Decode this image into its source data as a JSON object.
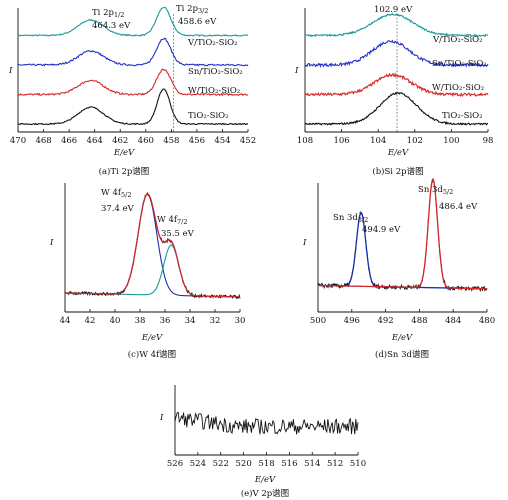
{
  "chart_data": [
    {
      "type": "line",
      "key": "ti",
      "caption": "(a)Ti 2p谱图",
      "xlabel": "E/eV",
      "ylabel": "I",
      "xlim": [
        470,
        452
      ],
      "xticks": [
        470,
        468,
        466,
        464,
        462,
        460,
        458,
        456,
        454,
        452
      ],
      "peaks": [
        {
          "label": "Ti 2p",
          "sub": "1/2",
          "value": "464.3 eV"
        },
        {
          "label": "Ti 2p",
          "sub": "3/2",
          "value": "458.6 eV"
        }
      ],
      "series": [
        {
          "name": "V/TiO₂-SiO₂",
          "color": "#1a9a9a",
          "offset": 3,
          "centers": [
            464.3,
            458.6
          ],
          "heights": [
            0.55,
            1.0
          ],
          "sigma": [
            1.0,
            0.55
          ],
          "noise": 0.02
        },
        {
          "name": "Sn/TiO₂-SiO₂",
          "color": "#2332c8",
          "offset": 2,
          "centers": [
            464.3,
            458.6
          ],
          "heights": [
            0.5,
            0.95
          ],
          "sigma": [
            1.0,
            0.55
          ],
          "noise": 0.03
        },
        {
          "name": "W/TiO₂-SiO₂",
          "color": "#d62828",
          "offset": 1,
          "centers": [
            464.3,
            458.6
          ],
          "heights": [
            0.5,
            0.9
          ],
          "sigma": [
            1.0,
            0.55
          ],
          "noise": 0.03
        },
        {
          "name": "TiO₂-SiO₂",
          "color": "#111111",
          "offset": 0,
          "centers": [
            464.3,
            458.6
          ],
          "heights": [
            0.6,
            1.25
          ],
          "sigma": [
            1.0,
            0.5
          ],
          "noise": 0.02
        }
      ]
    },
    {
      "type": "line",
      "key": "si",
      "caption": "(b)Si 2p谱图",
      "xlabel": "E/eV",
      "ylabel": "I",
      "xlim": [
        108,
        98
      ],
      "xticks": [
        108,
        106,
        104,
        102,
        100,
        98
      ],
      "peaks": [
        {
          "label": "",
          "sub": "",
          "value": "102.9 eV"
        }
      ],
      "series": [
        {
          "name": "V/TiO₂-SiO₂",
          "color": "#1a9a9a",
          "offset": 3,
          "centers": [
            103.2
          ],
          "heights": [
            0.75
          ],
          "sigma": [
            1.1
          ],
          "noise": 0.03
        },
        {
          "name": "Sn/TiO₂-SiO₂",
          "color": "#2332c8",
          "offset": 2,
          "centers": [
            103.3
          ],
          "heights": [
            0.85
          ],
          "sigma": [
            1.0
          ],
          "noise": 0.05
        },
        {
          "name": "W/TiO₂-SiO₂",
          "color": "#d62828",
          "offset": 1,
          "centers": [
            103.2
          ],
          "heights": [
            0.7
          ],
          "sigma": [
            1.0
          ],
          "noise": 0.05
        },
        {
          "name": "TiO₂-SiO₂",
          "color": "#111111",
          "offset": 0,
          "centers": [
            102.9
          ],
          "heights": [
            1.1
          ],
          "sigma": [
            1.0
          ],
          "noise": 0.03
        }
      ]
    },
    {
      "type": "line",
      "key": "w",
      "caption": "(c)W 4f谱图",
      "xlabel": "E/eV",
      "ylabel": "I",
      "xlim": [
        44,
        30
      ],
      "xticks": [
        44,
        42,
        40,
        38,
        36,
        34,
        32,
        30
      ],
      "peaks": [
        {
          "label": "W 4f",
          "sub": "5/2",
          "value": "37.4 eV"
        },
        {
          "label": "W 4f",
          "sub": "7/2",
          "value": "35.5 eV"
        }
      ],
      "series": [
        {
          "name": "",
          "color": "#111111",
          "role": "raw"
        },
        {
          "name": "",
          "color": "#d62828",
          "role": "fit"
        },
        {
          "name": "",
          "color": "#1a2fb0",
          "role": "peak",
          "center": 37.4,
          "height": 1.0,
          "sigma": 0.75
        },
        {
          "name": "",
          "color": "#1a9a9a",
          "role": "peak",
          "center": 35.5,
          "height": 0.5,
          "sigma": 0.6
        }
      ]
    },
    {
      "type": "line",
      "key": "sn",
      "caption": "(d)Sn 3d谱图",
      "xlabel": "E/eV",
      "ylabel": "I",
      "xlim": [
        500,
        480
      ],
      "xticks": [
        500,
        496,
        492,
        488,
        484,
        480
      ],
      "peaks": [
        {
          "label": "Sn 3d",
          "sub": "3/2",
          "value": "494.9 eV"
        },
        {
          "label": "Sn 3d",
          "sub": "5/2",
          "value": "486.4 eV"
        }
      ],
      "series": [
        {
          "name": "",
          "color": "#111111",
          "role": "raw"
        },
        {
          "name": "",
          "color": "#1a9a9a",
          "role": "baseline"
        },
        {
          "name": "",
          "color": "#1a2fb0",
          "role": "peak",
          "center": 494.9,
          "height": 0.68,
          "sigma": 0.55
        },
        {
          "name": "",
          "color": "#d62828",
          "role": "peak",
          "center": 486.4,
          "height": 1.0,
          "sigma": 0.55
        }
      ]
    },
    {
      "type": "line",
      "key": "v",
      "caption": "(e)V 2p谱图",
      "xlabel": "E/eV",
      "ylabel": "I",
      "xlim": [
        526,
        510
      ],
      "xticks": [
        526,
        524,
        522,
        520,
        518,
        516,
        514,
        512,
        510
      ],
      "series": [
        {
          "name": "",
          "color": "#111111",
          "role": "noise"
        }
      ]
    }
  ]
}
